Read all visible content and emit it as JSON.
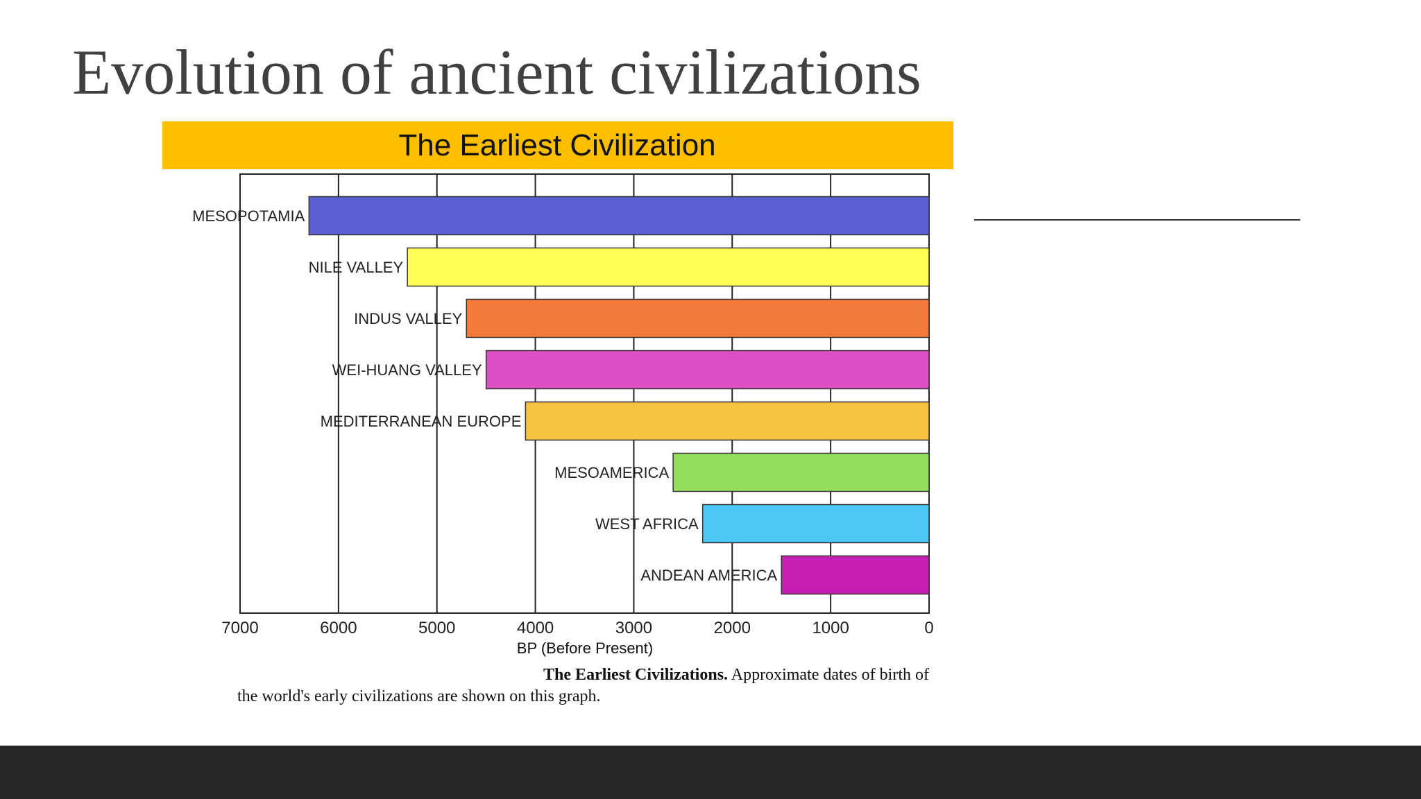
{
  "title": "Evolution of ancient civilizations",
  "chart_data": {
    "type": "bar",
    "orientation": "horizontal",
    "title": "The Earliest Civilization",
    "categories": [
      "MESOPOTAMIA",
      "NILE VALLEY",
      "INDUS VALLEY",
      "WEI-HUANG VALLEY",
      "MEDITERRANEAN EUROPE",
      "MESOAMERICA",
      "WEST AFRICA",
      "ANDEAN AMERICA"
    ],
    "values": [
      6300,
      5300,
      4700,
      4500,
      4100,
      2600,
      2300,
      1500
    ],
    "colors": [
      "#5b5fd4",
      "#ffff55",
      "#f47a3c",
      "#dd4fc5",
      "#f5c242",
      "#96de5f",
      "#4cc8f5",
      "#c71fb3"
    ],
    "xlim": [
      7000,
      0
    ],
    "xticks": [
      7000,
      6000,
      5000,
      4000,
      3000,
      2000,
      1000,
      0
    ],
    "xlabel": "BP (Before Present)",
    "grid": true,
    "caption": [
      "The Earliest Civilizations.",
      "Approximate dates of birth of",
      "the world's early civilizations are shown on this graph."
    ]
  }
}
